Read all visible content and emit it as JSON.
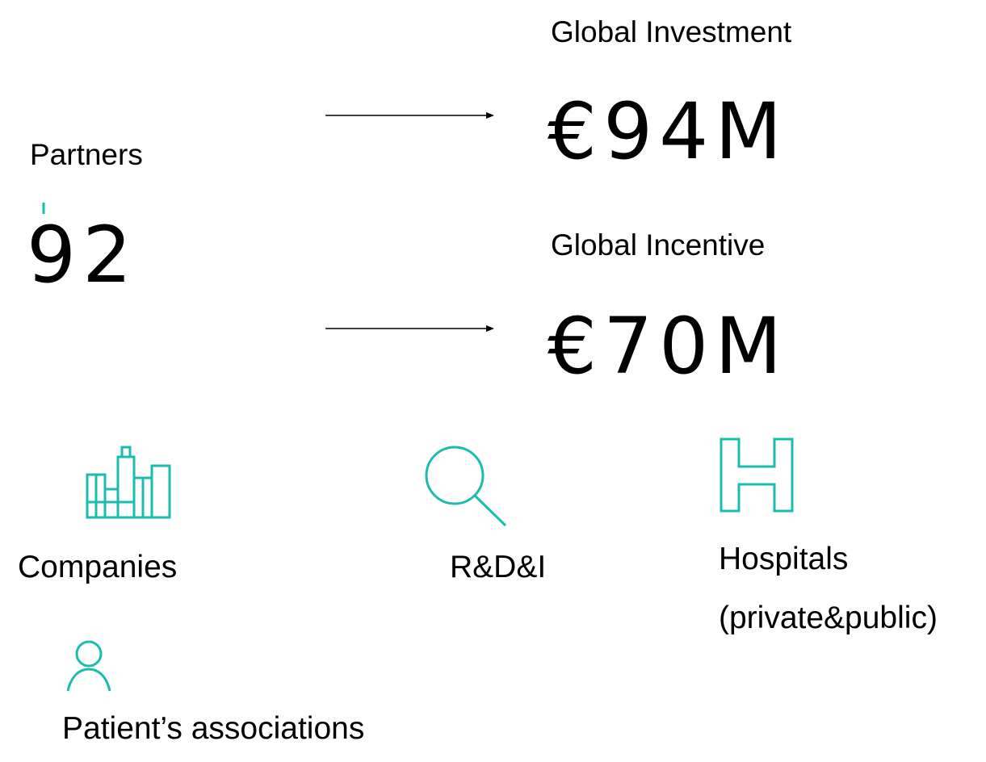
{
  "partners": {
    "label": "Partners",
    "value": "92"
  },
  "metrics": [
    {
      "label": "Global Investment",
      "value": "€94M"
    },
    {
      "label": "Global Incentive",
      "value": "€70M"
    }
  ],
  "categories": [
    {
      "label": "Companies"
    },
    {
      "label": "R&D&I"
    },
    {
      "lines": [
        "Hospitals",
        "(private&public)"
      ]
    },
    {
      "label": "Patient’s associations"
    }
  ]
}
